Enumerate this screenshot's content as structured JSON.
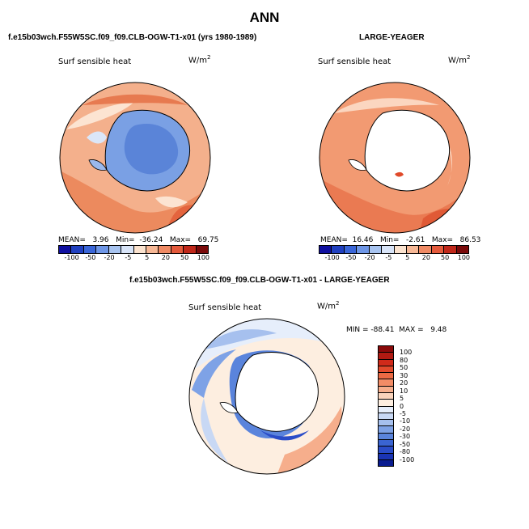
{
  "title": "ANN",
  "panels": {
    "left": {
      "case_title": "f.e15b03wch.F55W5SC.f09_f09.CLB-OGW-T1-x01 (yrs 1980-1989)",
      "variable": "Surf sensible heat",
      "units": "W/m",
      "units_exp": "2",
      "stats": "MEAN=   3.96   Min=  -36.24   Max=   69.75"
    },
    "right": {
      "case_title": "LARGE-YEAGER",
      "variable": "Surf sensible heat",
      "units": "W/m",
      "units_exp": "2",
      "stats": "MEAN=  16.46   Min=   -2.61   Max=   86.53"
    },
    "diff": {
      "case_title": "f.e15b03wch.F55W5SC.f09_f09.CLB-OGW-T1-x01 - LARGE-YEAGER",
      "variable": "Surf sensible heat",
      "units": "W/m",
      "units_exp": "2",
      "stats": "MIN = -88.41  MAX =   9.48"
    }
  },
  "colorbar_top": {
    "ticks": [
      "-100",
      "-50",
      "-20",
      "-5",
      "5",
      "20",
      "50",
      "100"
    ],
    "colors": [
      "#1010a0",
      "#2040c0",
      "#3a66d8",
      "#6e96e6",
      "#a8c4f0",
      "#d8e4f8",
      "#fbe3cf",
      "#f7b896",
      "#ef8a64",
      "#e45a3c",
      "#c0281a",
      "#7a0a0a"
    ]
  },
  "colorbar_diff": {
    "ticks": [
      "100",
      "80",
      "50",
      "30",
      "20",
      "10",
      "5",
      "0",
      "-5",
      "-10",
      "-20",
      "-30",
      "-50",
      "-80",
      "-100"
    ],
    "colors": [
      "#8a0a0a",
      "#b01a12",
      "#d02a1a",
      "#e24a2c",
      "#ec6a44",
      "#f28c66",
      "#f6ae8c",
      "#fad4bc",
      "#fdeee0",
      "#e6eefb",
      "#c8d8f4",
      "#a6c0ee",
      "#7ea2e6",
      "#5a84dc",
      "#3a64d2",
      "#2a4cc8",
      "#1a34b4",
      "#0a1c90"
    ]
  }
}
